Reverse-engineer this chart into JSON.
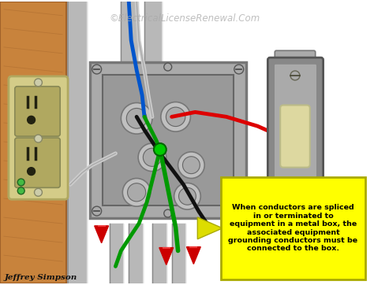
{
  "watermark": "©ElectricalLicenseRenewal.Com",
  "annotation_text": "When conductors are spliced\nin or terminated to\nequipment in a metal box, the\nassociated equipment\ngrounding conductors must be\nconnected to the box.",
  "author": "Jeffrey Simpson",
  "bg_color": "#ffffff",
  "wood_color": "#c8833c",
  "wood_dark": "#a0622a",
  "metal_box_color": "#aaaaaa",
  "metal_box_dark": "#777777",
  "metal_box_inner": "#999999",
  "conduit_color": "#b8b8b8",
  "conduit_dark": "#888888",
  "conduit_light": "#dddddd",
  "outlet_body": "#d4cc88",
  "outlet_dark": "#b0a860",
  "switch_body": "#888888",
  "switch_dark": "#555555",
  "wire_red": "#dd0000",
  "wire_black": "#111111",
  "wire_white": "#cccccc",
  "wire_green": "#009900",
  "wire_blue": "#0055cc",
  "annotation_bg": "#ffff00",
  "arrow_color": "#dddd00",
  "red_connector_color": "#cc0000",
  "screw_color": "#aaaaaa",
  "highlight_green": "#00cc00"
}
